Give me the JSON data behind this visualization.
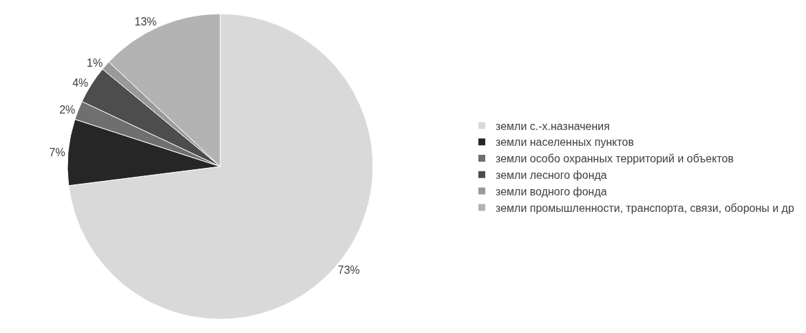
{
  "chart_data": {
    "type": "pie",
    "categories": [
      "земли с.-х.назначения",
      "земли населенных пунктов",
      "земли особо охранных территорий и объектов",
      "земли лесного фонда",
      "земли водного фонда",
      "земли промышленности, транспорта, связи, обороны и др"
    ],
    "values": [
      73,
      7,
      2,
      4,
      1,
      13
    ],
    "value_labels": [
      "73%",
      "7%",
      "2%",
      "4%",
      "1%",
      "13%"
    ],
    "colors": [
      "#d9d9d9",
      "#262626",
      "#6f6f6f",
      "#4d4d4d",
      "#999999",
      "#b3b3b3"
    ],
    "legend": "right"
  }
}
